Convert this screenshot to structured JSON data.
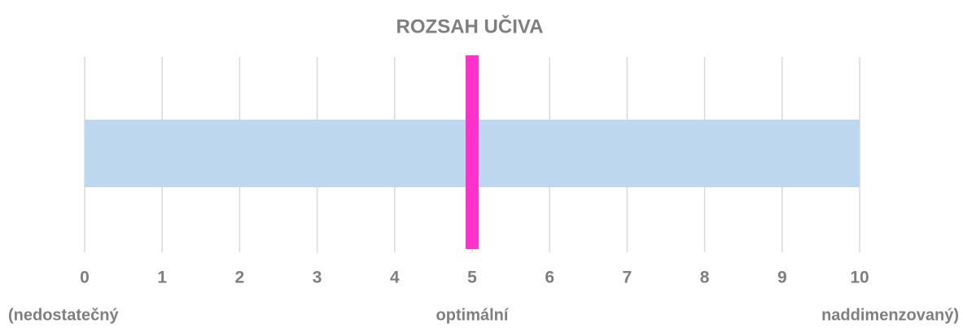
{
  "chart_data": {
    "type": "bar",
    "orientation": "horizontal",
    "title": "ROZSAH UČIVA",
    "values": [
      10
    ],
    "color": "#bdd7ee",
    "marker": {
      "value": 5,
      "color": "#ff33cc"
    },
    "xlim": [
      0,
      10
    ],
    "xticks": [
      0,
      1,
      2,
      3,
      4,
      5,
      6,
      7,
      8,
      9,
      10
    ],
    "grid": true,
    "scale_labels": [
      "(nedostatečný",
      "optimální",
      "naddimenzovaný)"
    ]
  }
}
